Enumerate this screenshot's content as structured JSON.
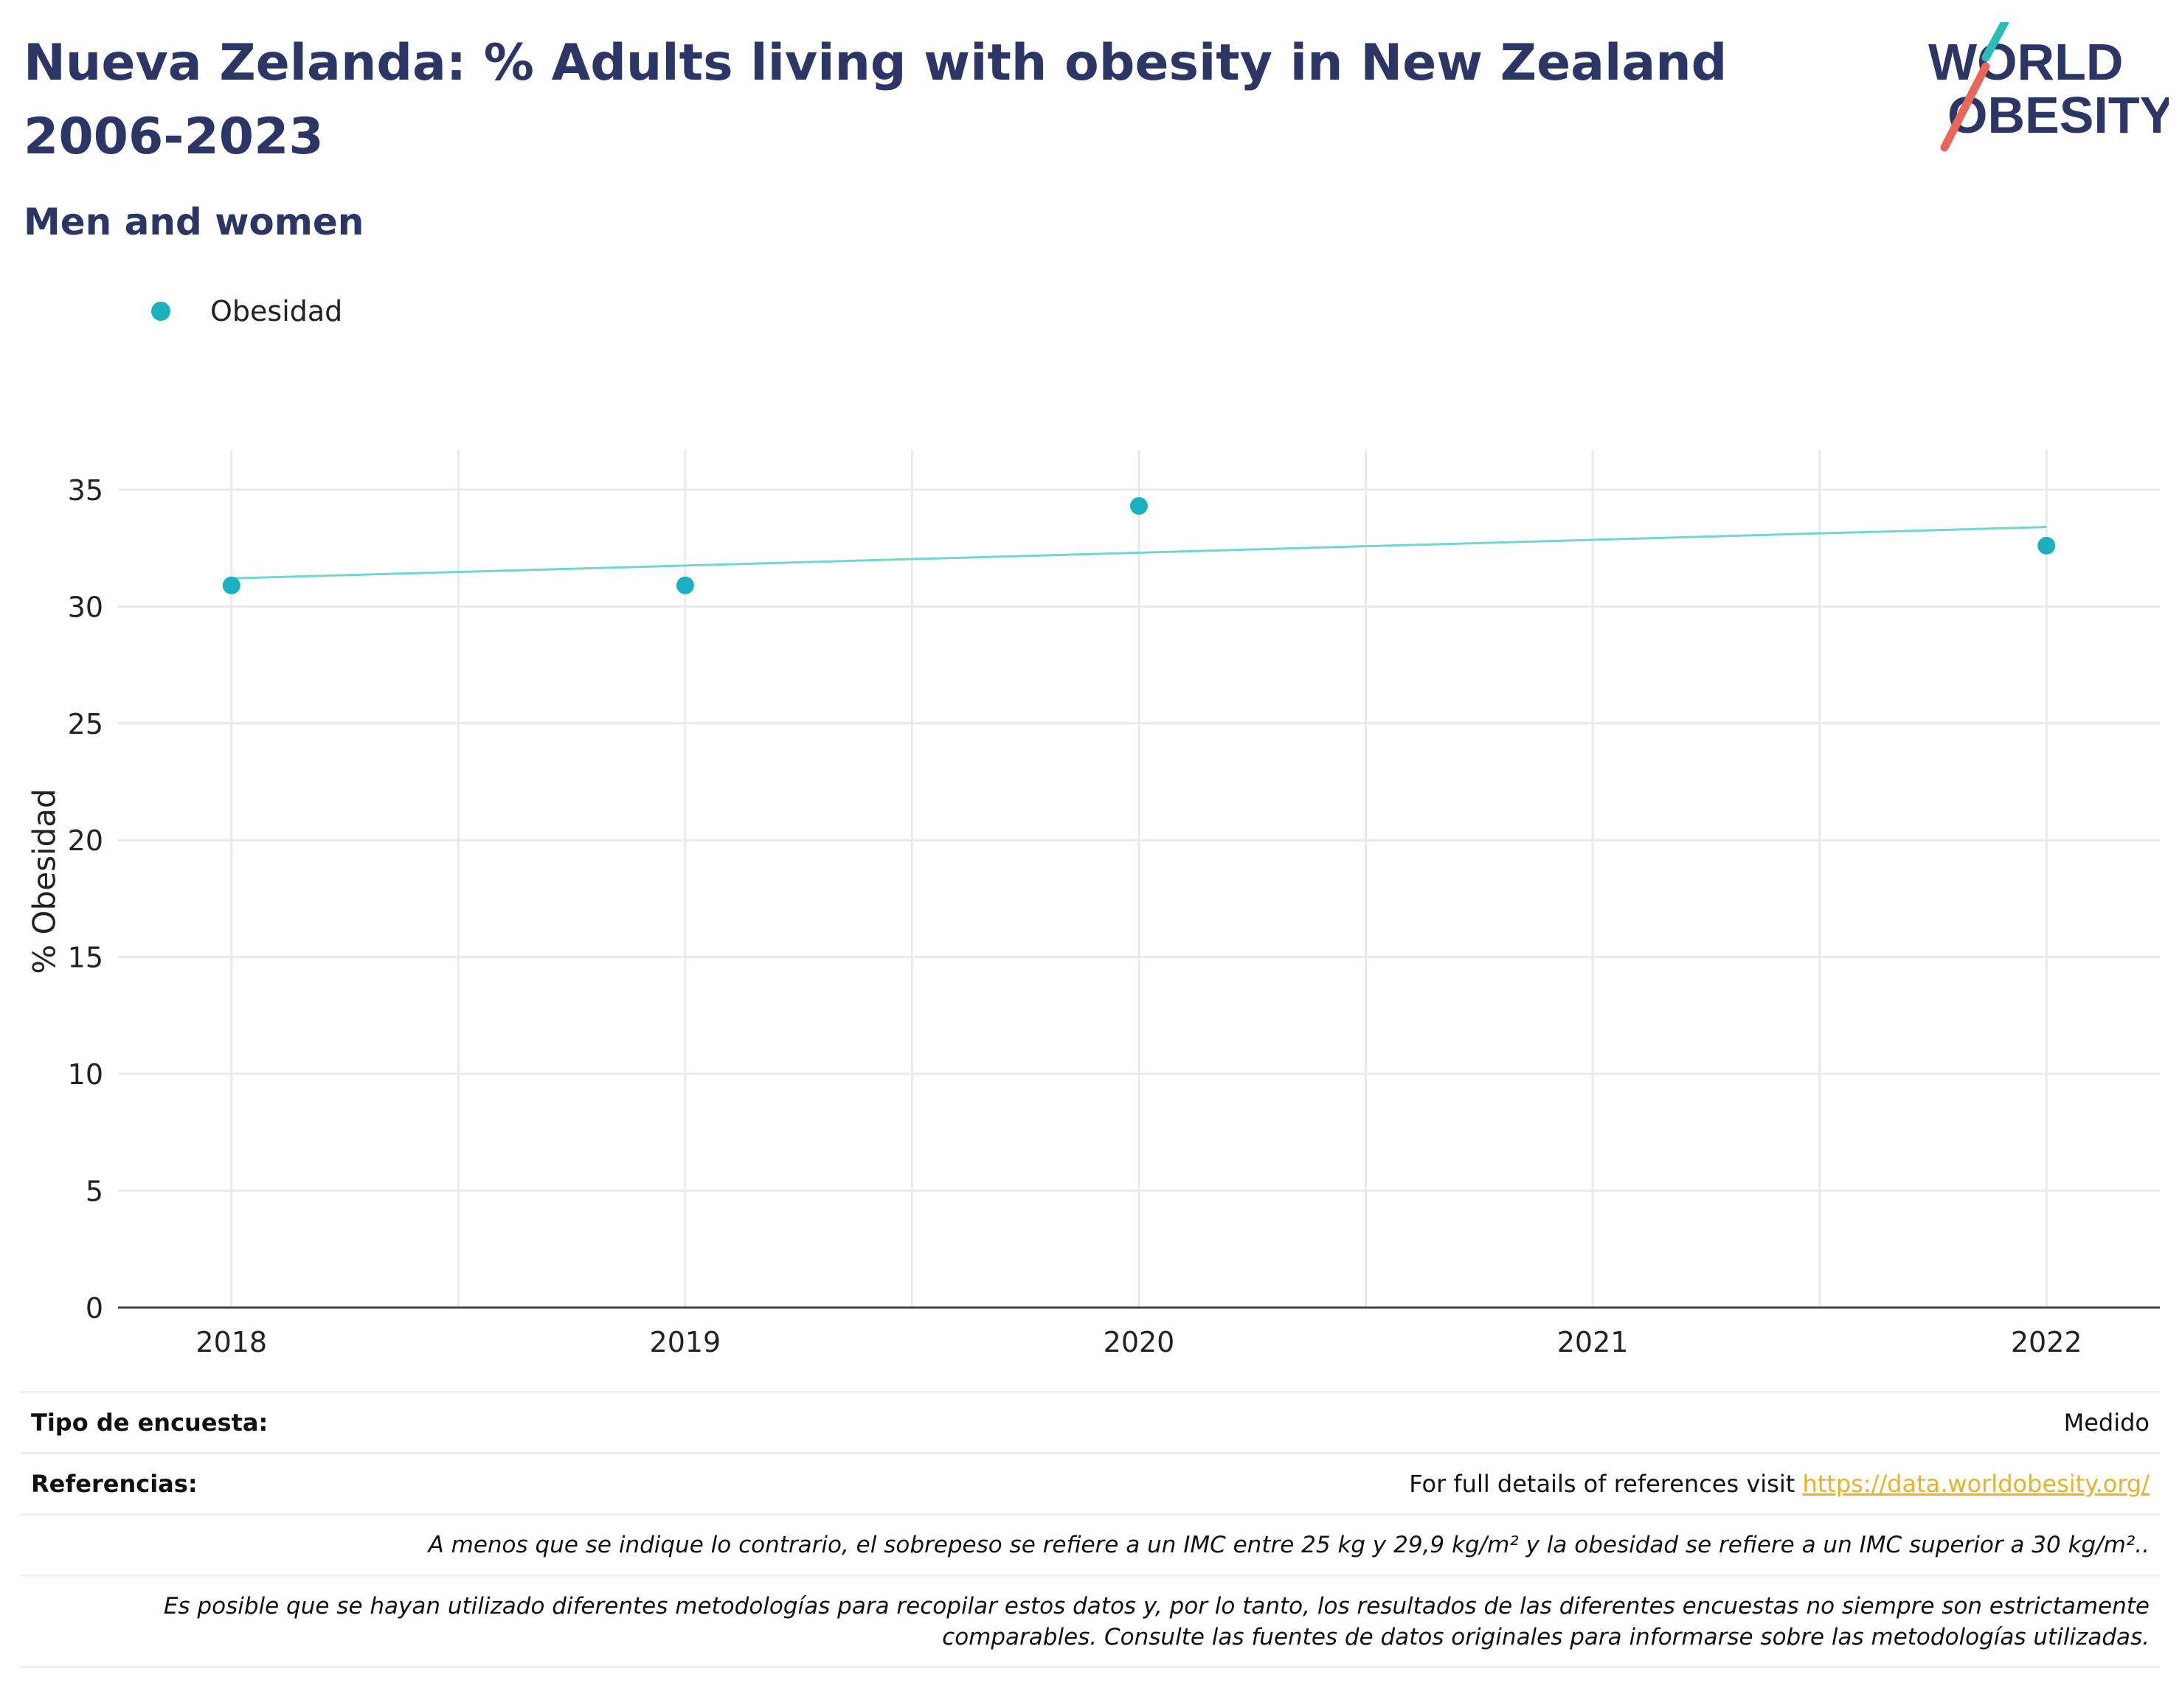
{
  "header": {
    "title": "Nueva Zelanda: % Adults living with obesity in New Zealand 2006-2023",
    "subtitle": "Men and women"
  },
  "logo": {
    "line1": "WORLD",
    "line2": "OBESITY",
    "accent_teal": "#2bbcb7",
    "accent_coral": "#e8675a",
    "text_color": "#2b3566"
  },
  "legend": {
    "label": "Obesidad",
    "color": "#1ab0bf"
  },
  "chart_data": {
    "type": "scatter",
    "title": "Nueva Zelanda: % Adults living with obesity in New Zealand 2006-2023",
    "subtitle": "Men and women",
    "xlabel": "",
    "ylabel": "% Obesidad",
    "x": [
      2018,
      2019,
      2020,
      2022
    ],
    "series": [
      {
        "name": "Obesidad",
        "values": [
          30.9,
          30.9,
          34.3,
          32.6
        ],
        "color": "#1ab0bf"
      }
    ],
    "trendline": {
      "x": [
        2018,
        2022
      ],
      "y": [
        31.2,
        33.4
      ],
      "color": "#6fd6d6"
    },
    "xticks": [
      "2018",
      "2019",
      "2020",
      "2021",
      "2022"
    ],
    "yticks": [
      "0",
      "5",
      "10",
      "15",
      "20",
      "25",
      "30",
      "35"
    ],
    "xlim": [
      2017.75,
      2022.25
    ],
    "ylim": [
      0,
      36.7
    ],
    "grid": true,
    "legend_position": "top-left"
  },
  "info": {
    "survey_type_label": "Tipo de encuesta:",
    "survey_type_value": "Medido",
    "references_label": "Referencias:",
    "references_text": "For full details of references visit ",
    "references_link": "https://data.worldobesity.org/",
    "note1": "A menos que se indique lo contrario, el sobrepeso se refiere a un IMC entre 25 kg y 29,9 kg/m² y la obesidad se refiere a un IMC superior a 30 kg/m²..",
    "note2_line1": "Es posible que se hayan utilizado diferentes metodologías para recopilar estos datos y, por lo tanto, los resultados de las diferentes encuestas no siempre son estrictamente",
    "note2_line2": "comparables. Consulte las fuentes de datos originales para informarse sobre las metodologías utilizadas."
  }
}
